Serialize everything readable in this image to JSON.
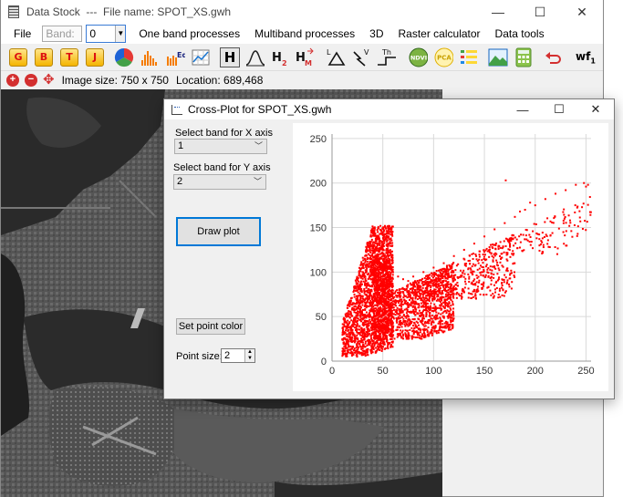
{
  "window": {
    "title": "Data Stock  ---  File name: SPOT_XS.gwh",
    "controls": {
      "minimize": "—",
      "maximize": "☐",
      "close": "✕"
    }
  },
  "menu": {
    "file": "File",
    "band_label": "Band:",
    "band_value": "0",
    "items": [
      "One band processes",
      "Multiband processes",
      "3D",
      "Raster calculator",
      "Data tools"
    ]
  },
  "toolbar": {
    "letters": [
      "G",
      "B",
      "T",
      "J"
    ],
    "h_label": "H",
    "h1": "H",
    "h2_sub": "2",
    "hm_sub": "M",
    "l_label": "L",
    "v_label": "V",
    "th_label": "Th",
    "ndvi_label": "NDVI",
    "pca_label": "PCA",
    "wf_label": "wf",
    "wf_sub": "1"
  },
  "status": {
    "image_size": "Image size: 750 x 750",
    "location": "Location: 689,468"
  },
  "dialog": {
    "title": "Cross-Plot for SPOT_XS.gwh",
    "x_axis_label": "Select band for X axis",
    "x_axis_value": "1",
    "y_axis_label": "Select band for Y axis",
    "y_axis_value": "2",
    "draw_button": "Draw plot",
    "color_button": "Set point color",
    "point_size_label": "Point size:",
    "point_size_value": "2",
    "controls": {
      "minimize": "—",
      "maximize": "☐",
      "close": "✕"
    }
  },
  "chart_data": {
    "type": "scatter",
    "xlim": [
      0,
      255
    ],
    "ylim": [
      0,
      255
    ],
    "x_ticks": [
      0,
      50,
      100,
      150,
      200,
      250
    ],
    "y_ticks": [
      0,
      50,
      100,
      150,
      200,
      250
    ],
    "grid": true,
    "point_color": "#ff0000",
    "series": [
      {
        "x": [
          12,
          15,
          18,
          20,
          22,
          25,
          28,
          30,
          32,
          35,
          38,
          40,
          42,
          45,
          48,
          50,
          55,
          60,
          65,
          70,
          75,
          80,
          90,
          100,
          110,
          120,
          130,
          140,
          150,
          160,
          170,
          180,
          190,
          200,
          210,
          220,
          230,
          240,
          248,
          252,
          20,
          25,
          30,
          35,
          40,
          45,
          50,
          60,
          80,
          100,
          120,
          140,
          40,
          45,
          50,
          55,
          60,
          70,
          80,
          90,
          171,
          185,
          195,
          250
        ],
        "y": [
          8,
          12,
          25,
          40,
          55,
          70,
          85,
          100,
          115,
          130,
          140,
          148,
          150,
          145,
          135,
          125,
          110,
          100,
          95,
          92,
          90,
          95,
          100,
          105,
          110,
          118,
          125,
          132,
          140,
          148,
          155,
          162,
          170,
          175,
          182,
          188,
          192,
          198,
          200,
          198,
          15,
          20,
          28,
          35,
          42,
          48,
          55,
          60,
          65,
          70,
          75,
          80,
          30,
          25,
          20,
          18,
          22,
          30,
          40,
          50,
          203,
          168,
          178,
          196
        ]
      }
    ],
    "spread": [
      {
        "x": [
          10,
          60
        ],
        "y": [
          5,
          152
        ],
        "density": 2600
      },
      {
        "x": [
          40,
          120
        ],
        "y": [
          25,
          115
        ],
        "density": 1800
      },
      {
        "x": [
          80,
          180
        ],
        "y": [
          70,
          155
        ],
        "density": 900
      },
      {
        "x": [
          150,
          255
        ],
        "y": [
          120,
          205
        ],
        "density": 300
      }
    ]
  }
}
